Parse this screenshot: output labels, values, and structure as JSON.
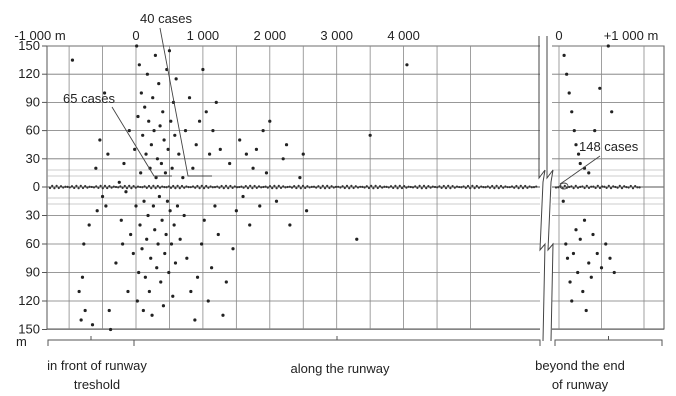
{
  "chart_data": {
    "type": "scatter",
    "x_ticks_main": [
      "-1 000 m",
      "0",
      "1 000",
      "2 000",
      "3 000",
      "4 000"
    ],
    "x_ticks_end": [
      "0",
      "+1 000 m"
    ],
    "y_ticks": [
      "150",
      "120",
      "90",
      "60",
      "30",
      "0",
      "30",
      "60",
      "90",
      "120",
      "150"
    ],
    "y_unit": "m",
    "annotations": [
      "40 cases",
      "65 cases",
      "148 cases"
    ],
    "regions": [
      {
        "label_lines": [
          "in front of runway",
          "treshold"
        ]
      },
      {
        "label_lines": [
          "along the runway"
        ]
      },
      {
        "label_lines": [
          "beyond the end",
          "of runway"
        ]
      }
    ],
    "points_main": [
      [
        -950,
        135
      ],
      [
        -850,
        -110
      ],
      [
        -820,
        -140
      ],
      [
        -800,
        -95
      ],
      [
        -780,
        -60
      ],
      [
        -760,
        -130
      ],
      [
        -700,
        -40
      ],
      [
        -650,
        -145
      ],
      [
        -600,
        20
      ],
      [
        -580,
        -25
      ],
      [
        -540,
        50
      ],
      [
        -500,
        -10
      ],
      [
        -470,
        100
      ],
      [
        -450,
        -20
      ],
      [
        -420,
        35
      ],
      [
        -400,
        -130
      ],
      [
        -380,
        -150
      ],
      [
        -300,
        -80
      ],
      [
        -250,
        5
      ],
      [
        -220,
        -35
      ],
      [
        -200,
        -60
      ],
      [
        -180,
        25
      ],
      [
        -150,
        -5
      ],
      [
        -120,
        -110
      ],
      [
        -100,
        60
      ],
      [
        -80,
        -50
      ],
      [
        -40,
        -70
      ],
      [
        -20,
        40
      ],
      [
        0,
        -20
      ],
      [
        10,
        150
      ],
      [
        20,
        -120
      ],
      [
        30,
        75
      ],
      [
        40,
        -90
      ],
      [
        50,
        130
      ],
      [
        60,
        -40
      ],
      [
        70,
        15
      ],
      [
        80,
        100
      ],
      [
        90,
        -65
      ],
      [
        100,
        55
      ],
      [
        110,
        -130
      ],
      [
        120,
        -15
      ],
      [
        130,
        85
      ],
      [
        140,
        -95
      ],
      [
        150,
        35
      ],
      [
        160,
        -55
      ],
      [
        170,
        120
      ],
      [
        180,
        -30
      ],
      [
        190,
        70
      ],
      [
        200,
        -110
      ],
      [
        210,
        20
      ],
      [
        220,
        -75
      ],
      [
        230,
        45
      ],
      [
        240,
        -135
      ],
      [
        250,
        95
      ],
      [
        260,
        -20
      ],
      [
        270,
        60
      ],
      [
        280,
        -45
      ],
      [
        290,
        140
      ],
      [
        300,
        10
      ],
      [
        310,
        -85
      ],
      [
        320,
        30
      ],
      [
        330,
        -60
      ],
      [
        340,
        110
      ],
      [
        350,
        -10
      ],
      [
        360,
        65
      ],
      [
        370,
        -100
      ],
      [
        380,
        25
      ],
      [
        390,
        -35
      ],
      [
        400,
        80
      ],
      [
        410,
        -125
      ],
      [
        420,
        50
      ],
      [
        430,
        -70
      ],
      [
        440,
        15
      ],
      [
        450,
        -50
      ],
      [
        460,
        125
      ],
      [
        470,
        -15
      ],
      [
        480,
        40
      ],
      [
        490,
        -90
      ],
      [
        500,
        145
      ],
      [
        510,
        -25
      ],
      [
        520,
        70
      ],
      [
        530,
        -60
      ],
      [
        540,
        20
      ],
      [
        550,
        -115
      ],
      [
        560,
        90
      ],
      [
        570,
        -40
      ],
      [
        580,
        55
      ],
      [
        590,
        -80
      ],
      [
        600,
        115
      ],
      [
        620,
        -20
      ],
      [
        640,
        35
      ],
      [
        660,
        -55
      ],
      [
        700,
        10
      ],
      [
        720,
        -30
      ],
      [
        740,
        60
      ],
      [
        760,
        -75
      ],
      [
        800,
        95
      ],
      [
        820,
        -110
      ],
      [
        850,
        20
      ],
      [
        880,
        -140
      ],
      [
        900,
        45
      ],
      [
        920,
        -95
      ],
      [
        950,
        70
      ],
      [
        980,
        -60
      ],
      [
        1000,
        125
      ],
      [
        1020,
        -35
      ],
      [
        1050,
        80
      ],
      [
        1080,
        -120
      ],
      [
        1100,
        35
      ],
      [
        1130,
        -85
      ],
      [
        1150,
        60
      ],
      [
        1180,
        -20
      ],
      [
        1200,
        90
      ],
      [
        1230,
        -50
      ],
      [
        1260,
        40
      ],
      [
        1300,
        -135
      ],
      [
        1350,
        -100
      ],
      [
        1400,
        25
      ],
      [
        1450,
        -65
      ],
      [
        1500,
        -25
      ],
      [
        1550,
        50
      ],
      [
        1600,
        -10
      ],
      [
        1650,
        35
      ],
      [
        1700,
        -40
      ],
      [
        1750,
        20
      ],
      [
        1800,
        40
      ],
      [
        1850,
        -20
      ],
      [
        1900,
        60
      ],
      [
        1950,
        15
      ],
      [
        2000,
        70
      ],
      [
        2100,
        -15
      ],
      [
        2200,
        30
      ],
      [
        2250,
        45
      ],
      [
        2300,
        -40
      ],
      [
        2450,
        10
      ],
      [
        2500,
        35
      ],
      [
        2550,
        -25
      ],
      [
        3300,
        -55
      ],
      [
        3500,
        55
      ],
      [
        4050,
        130
      ]
    ],
    "points_end": [
      [
        50,
        -15
      ],
      [
        80,
        -60
      ],
      [
        100,
        -75
      ],
      [
        130,
        -100
      ],
      [
        150,
        -120
      ],
      [
        170,
        -70
      ],
      [
        200,
        -45
      ],
      [
        220,
        -90
      ],
      [
        250,
        -55
      ],
      [
        280,
        -110
      ],
      [
        300,
        -35
      ],
      [
        320,
        -130
      ],
      [
        350,
        -80
      ],
      [
        380,
        -95
      ],
      [
        400,
        -50
      ],
      [
        450,
        -70
      ],
      [
        500,
        -85
      ],
      [
        550,
        -60
      ],
      [
        600,
        -75
      ],
      [
        650,
        -90
      ],
      [
        60,
        140
      ],
      [
        90,
        120
      ],
      [
        120,
        100
      ],
      [
        150,
        80
      ],
      [
        180,
        60
      ],
      [
        200,
        45
      ],
      [
        230,
        35
      ],
      [
        250,
        25
      ],
      [
        300,
        20
      ],
      [
        350,
        15
      ],
      [
        420,
        60
      ],
      [
        480,
        105
      ],
      [
        580,
        150
      ],
      [
        620,
        80
      ]
    ]
  }
}
